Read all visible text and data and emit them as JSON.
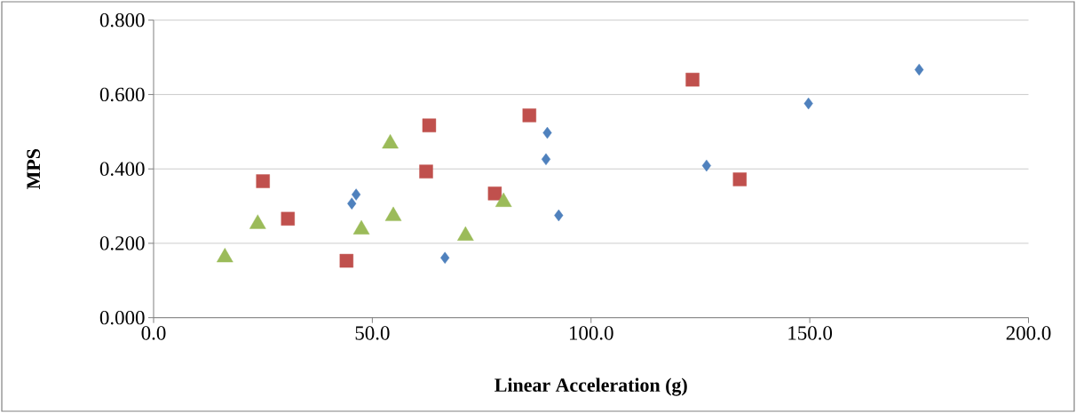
{
  "chart_data": {
    "type": "scatter",
    "xlabel": "Linear Acceleration (g)",
    "ylabel": "MPS",
    "xlim": [
      0,
      200
    ],
    "ylim": [
      0,
      0.8
    ],
    "xticks": [
      {
        "value": 0,
        "label": "0.0"
      },
      {
        "value": 50,
        "label": "50.0"
      },
      {
        "value": 100,
        "label": "100.0"
      },
      {
        "value": 150,
        "label": "150.0"
      },
      {
        "value": 200,
        "label": "200.0"
      }
    ],
    "yticks": [
      {
        "value": 0,
        "label": "0.000"
      },
      {
        "value": 0.2,
        "label": "0.200"
      },
      {
        "value": 0.4,
        "label": "0.400"
      },
      {
        "value": 0.6,
        "label": "0.600"
      },
      {
        "value": 0.8,
        "label": "0.800"
      }
    ],
    "grid": "y",
    "series": [
      {
        "color": "#4f81bd",
        "marker": "diamond",
        "x": [
          46.3,
          45.3,
          66.6,
          90.0,
          89.7,
          92.6,
          149.7,
          175.0,
          126.4
        ],
        "values": [
          0.331,
          0.307,
          0.161,
          0.497,
          0.426,
          0.275,
          0.576,
          0.667,
          0.409
        ]
      },
      {
        "color": "#c0504d",
        "marker": "square",
        "x": [
          25.0,
          30.7,
          44.1,
          63.0,
          62.3,
          78.0,
          85.9,
          123.2,
          134.0
        ],
        "values": [
          0.367,
          0.266,
          0.153,
          0.517,
          0.393,
          0.334,
          0.544,
          0.64,
          0.372
        ]
      },
      {
        "color": "#9bbb59",
        "marker": "triangle",
        "x": [
          16.3,
          23.8,
          47.5,
          54.1,
          54.8,
          71.3,
          80.0
        ],
        "values": [
          0.162,
          0.252,
          0.237,
          0.468,
          0.273,
          0.22,
          0.311
        ]
      }
    ]
  }
}
